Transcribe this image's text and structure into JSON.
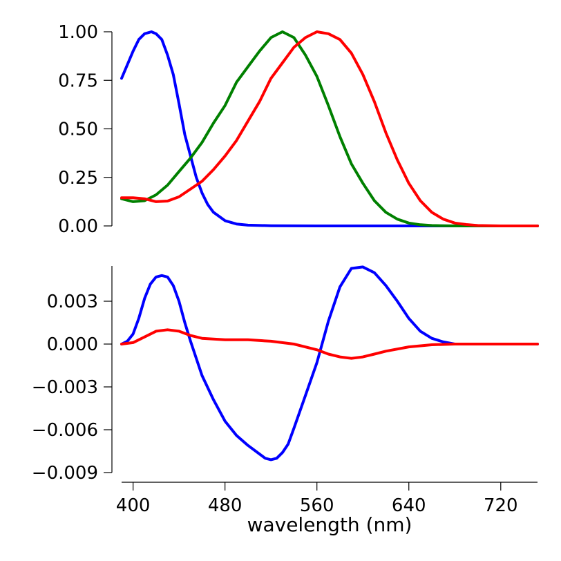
{
  "chart_data": [
    {
      "type": "line",
      "xlim": [
        390,
        752
      ],
      "ylim": [
        0,
        1
      ],
      "xticks": [
        400,
        480,
        560,
        640,
        720
      ],
      "yticks": [
        0.0,
        0.25,
        0.5,
        0.75,
        1.0
      ],
      "ytick_labels": [
        "0.00",
        "0.25",
        "0.50",
        "0.75",
        "1.00"
      ],
      "grid": false,
      "series": [
        {
          "color": "#0000ff",
          "points": [
            [
              390,
              0.76
            ],
            [
              400,
              0.9
            ],
            [
              405,
              0.96
            ],
            [
              410,
              0.99
            ],
            [
              416,
              1.0
            ],
            [
              420,
              0.99
            ],
            [
              425,
              0.96
            ],
            [
              430,
              0.88
            ],
            [
              435,
              0.78
            ],
            [
              440,
              0.63
            ],
            [
              445,
              0.47
            ],
            [
              450,
              0.36
            ],
            [
              455,
              0.25
            ],
            [
              460,
              0.17
            ],
            [
              465,
              0.11
            ],
            [
              470,
              0.07
            ],
            [
              480,
              0.027
            ],
            [
              490,
              0.01
            ],
            [
              500,
              0.004
            ],
            [
              520,
              0.001
            ],
            [
              560,
              0.0
            ],
            [
              600,
              0.0
            ],
            [
              752,
              0.0
            ]
          ]
        },
        {
          "color": "#008000",
          "points": [
            [
              390,
              0.14
            ],
            [
              400,
              0.125
            ],
            [
              410,
              0.13
            ],
            [
              420,
              0.16
            ],
            [
              430,
              0.21
            ],
            [
              440,
              0.28
            ],
            [
              450,
              0.35
            ],
            [
              460,
              0.43
            ],
            [
              470,
              0.53
            ],
            [
              480,
              0.62
            ],
            [
              490,
              0.74
            ],
            [
              500,
              0.82
            ],
            [
              510,
              0.9
            ],
            [
              520,
              0.97
            ],
            [
              530,
              1.0
            ],
            [
              540,
              0.97
            ],
            [
              550,
              0.88
            ],
            [
              560,
              0.77
            ],
            [
              570,
              0.62
            ],
            [
              580,
              0.46
            ],
            [
              590,
              0.32
            ],
            [
              600,
              0.22
            ],
            [
              610,
              0.13
            ],
            [
              620,
              0.07
            ],
            [
              630,
              0.035
            ],
            [
              640,
              0.015
            ],
            [
              650,
              0.006
            ],
            [
              660,
              0.002
            ],
            [
              680,
              0.0
            ],
            [
              752,
              0.0
            ]
          ]
        },
        {
          "color": "#ff0000",
          "points": [
            [
              390,
              0.145
            ],
            [
              400,
              0.145
            ],
            [
              410,
              0.14
            ],
            [
              420,
              0.125
            ],
            [
              430,
              0.128
            ],
            [
              440,
              0.15
            ],
            [
              450,
              0.19
            ],
            [
              460,
              0.23
            ],
            [
              470,
              0.29
            ],
            [
              480,
              0.36
            ],
            [
              490,
              0.44
            ],
            [
              500,
              0.54
            ],
            [
              510,
              0.64
            ],
            [
              520,
              0.76
            ],
            [
              530,
              0.84
            ],
            [
              540,
              0.92
            ],
            [
              550,
              0.97
            ],
            [
              560,
              1.0
            ],
            [
              570,
              0.99
            ],
            [
              580,
              0.96
            ],
            [
              590,
              0.89
            ],
            [
              600,
              0.78
            ],
            [
              610,
              0.64
            ],
            [
              620,
              0.48
            ],
            [
              630,
              0.34
            ],
            [
              640,
              0.22
            ],
            [
              650,
              0.13
            ],
            [
              660,
              0.07
            ],
            [
              670,
              0.035
            ],
            [
              680,
              0.015
            ],
            [
              690,
              0.007
            ],
            [
              700,
              0.002
            ],
            [
              720,
              0.0
            ],
            [
              752,
              0.0
            ]
          ]
        }
      ]
    },
    {
      "type": "line",
      "xlim": [
        390,
        752
      ],
      "ylim": [
        -0.0093,
        0.0054
      ],
      "xticks": [
        400,
        480,
        560,
        640,
        720
      ],
      "yticks": [
        0.003,
        0.0,
        -0.003,
        -0.006,
        -0.009
      ],
      "ytick_labels": [
        "0.003",
        "0.000",
        "−0.003",
        "−0.006",
        "−0.009"
      ],
      "xlabel": "wavelength (nm)",
      "grid": false,
      "series": [
        {
          "color": "#0000ff",
          "points": [
            [
              390,
              0.0
            ],
            [
              395,
              0.0002
            ],
            [
              400,
              0.0007
            ],
            [
              405,
              0.0018
            ],
            [
              410,
              0.0032
            ],
            [
              415,
              0.0042
            ],
            [
              420,
              0.0047
            ],
            [
              425,
              0.0048
            ],
            [
              430,
              0.0047
            ],
            [
              435,
              0.0041
            ],
            [
              440,
              0.003
            ],
            [
              445,
              0.0015
            ],
            [
              450,
              0.0002
            ],
            [
              455,
              -0.001
            ],
            [
              460,
              -0.0022
            ],
            [
              470,
              -0.0039
            ],
            [
              480,
              -0.0054
            ],
            [
              490,
              -0.0064
            ],
            [
              500,
              -0.0071
            ],
            [
              510,
              -0.0077
            ],
            [
              515,
              -0.008
            ],
            [
              520,
              -0.0081
            ],
            [
              525,
              -0.008
            ],
            [
              530,
              -0.0076
            ],
            [
              535,
              -0.007
            ],
            [
              540,
              -0.0059
            ],
            [
              550,
              -0.0036
            ],
            [
              560,
              -0.0013
            ],
            [
              570,
              0.0016
            ],
            [
              580,
              0.004
            ],
            [
              590,
              0.0053
            ],
            [
              600,
              0.0054
            ],
            [
              610,
              0.005
            ],
            [
              620,
              0.0041
            ],
            [
              630,
              0.003
            ],
            [
              640,
              0.0018
            ],
            [
              650,
              0.0009
            ],
            [
              660,
              0.0004
            ],
            [
              670,
              0.00015
            ],
            [
              680,
              0.0
            ],
            [
              752,
              0.0
            ]
          ]
        },
        {
          "color": "#ff0000",
          "points": [
            [
              390,
              0.0
            ],
            [
              400,
              0.0001
            ],
            [
              410,
              0.0005
            ],
            [
              420,
              0.0009
            ],
            [
              430,
              0.001
            ],
            [
              440,
              0.0009
            ],
            [
              450,
              0.0006
            ],
            [
              460,
              0.0004
            ],
            [
              480,
              0.0003
            ],
            [
              500,
              0.0003
            ],
            [
              520,
              0.0002
            ],
            [
              540,
              0.0
            ],
            [
              560,
              -0.0004
            ],
            [
              570,
              -0.0007
            ],
            [
              580,
              -0.0009
            ],
            [
              590,
              -0.001
            ],
            [
              600,
              -0.0009
            ],
            [
              610,
              -0.0007
            ],
            [
              620,
              -0.0005
            ],
            [
              640,
              -0.0002
            ],
            [
              660,
              -5e-05
            ],
            [
              680,
              0.0
            ],
            [
              752,
              0.0
            ]
          ]
        }
      ]
    }
  ]
}
